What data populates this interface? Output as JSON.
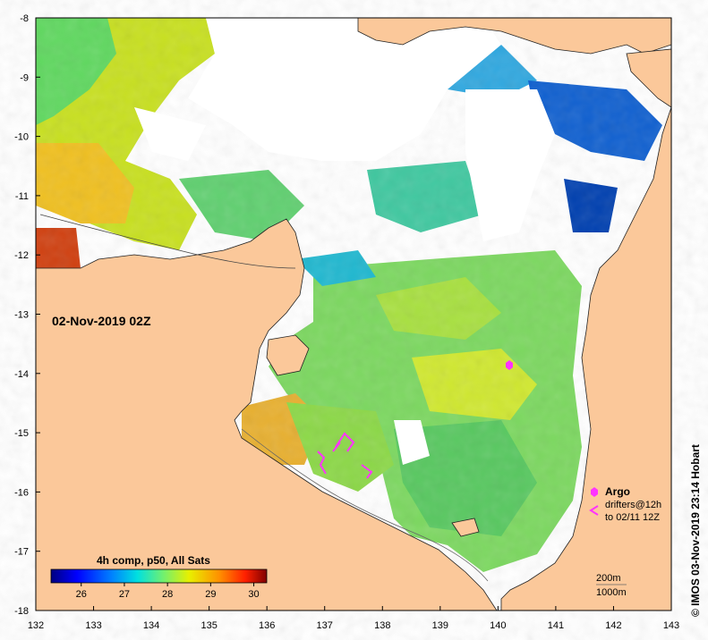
{
  "map": {
    "title_time": "02-Nov-2019 02Z",
    "composite_label": "4h comp, p50, All Sats",
    "colorbar_ticks": [
      "26",
      "27",
      "28",
      "29",
      "30"
    ],
    "colorbar_range": [
      25.3,
      30.3
    ],
    "colorbar_colors": [
      "#00007f",
      "#0000ff",
      "#007fff",
      "#00ffff",
      "#7fff7f",
      "#ffff00",
      "#ff7f00",
      "#ff0000",
      "#7f0000"
    ],
    "x_ticks": [
      "132",
      "133",
      "134",
      "135",
      "136",
      "137",
      "138",
      "139",
      "140",
      "141",
      "142",
      "143"
    ],
    "y_ticks": [
      "-8",
      "-9",
      "-10",
      "-11",
      "-12",
      "-13",
      "-14",
      "-15",
      "-16",
      "-17",
      "-18"
    ],
    "legend": {
      "argo_label": "Argo",
      "drifters_label": "drifters@12h",
      "drifters_sub": "to 02/11 12Z",
      "depth_200": "200m",
      "depth_1000": "1000m"
    },
    "credit": "© IMOS 03-Nov-2019 23:14 Hobart",
    "colors": {
      "land": "#fbc89a",
      "cloud": "#ffffff",
      "argo": "#ff33ff",
      "drifter": "#ff33ff"
    }
  }
}
